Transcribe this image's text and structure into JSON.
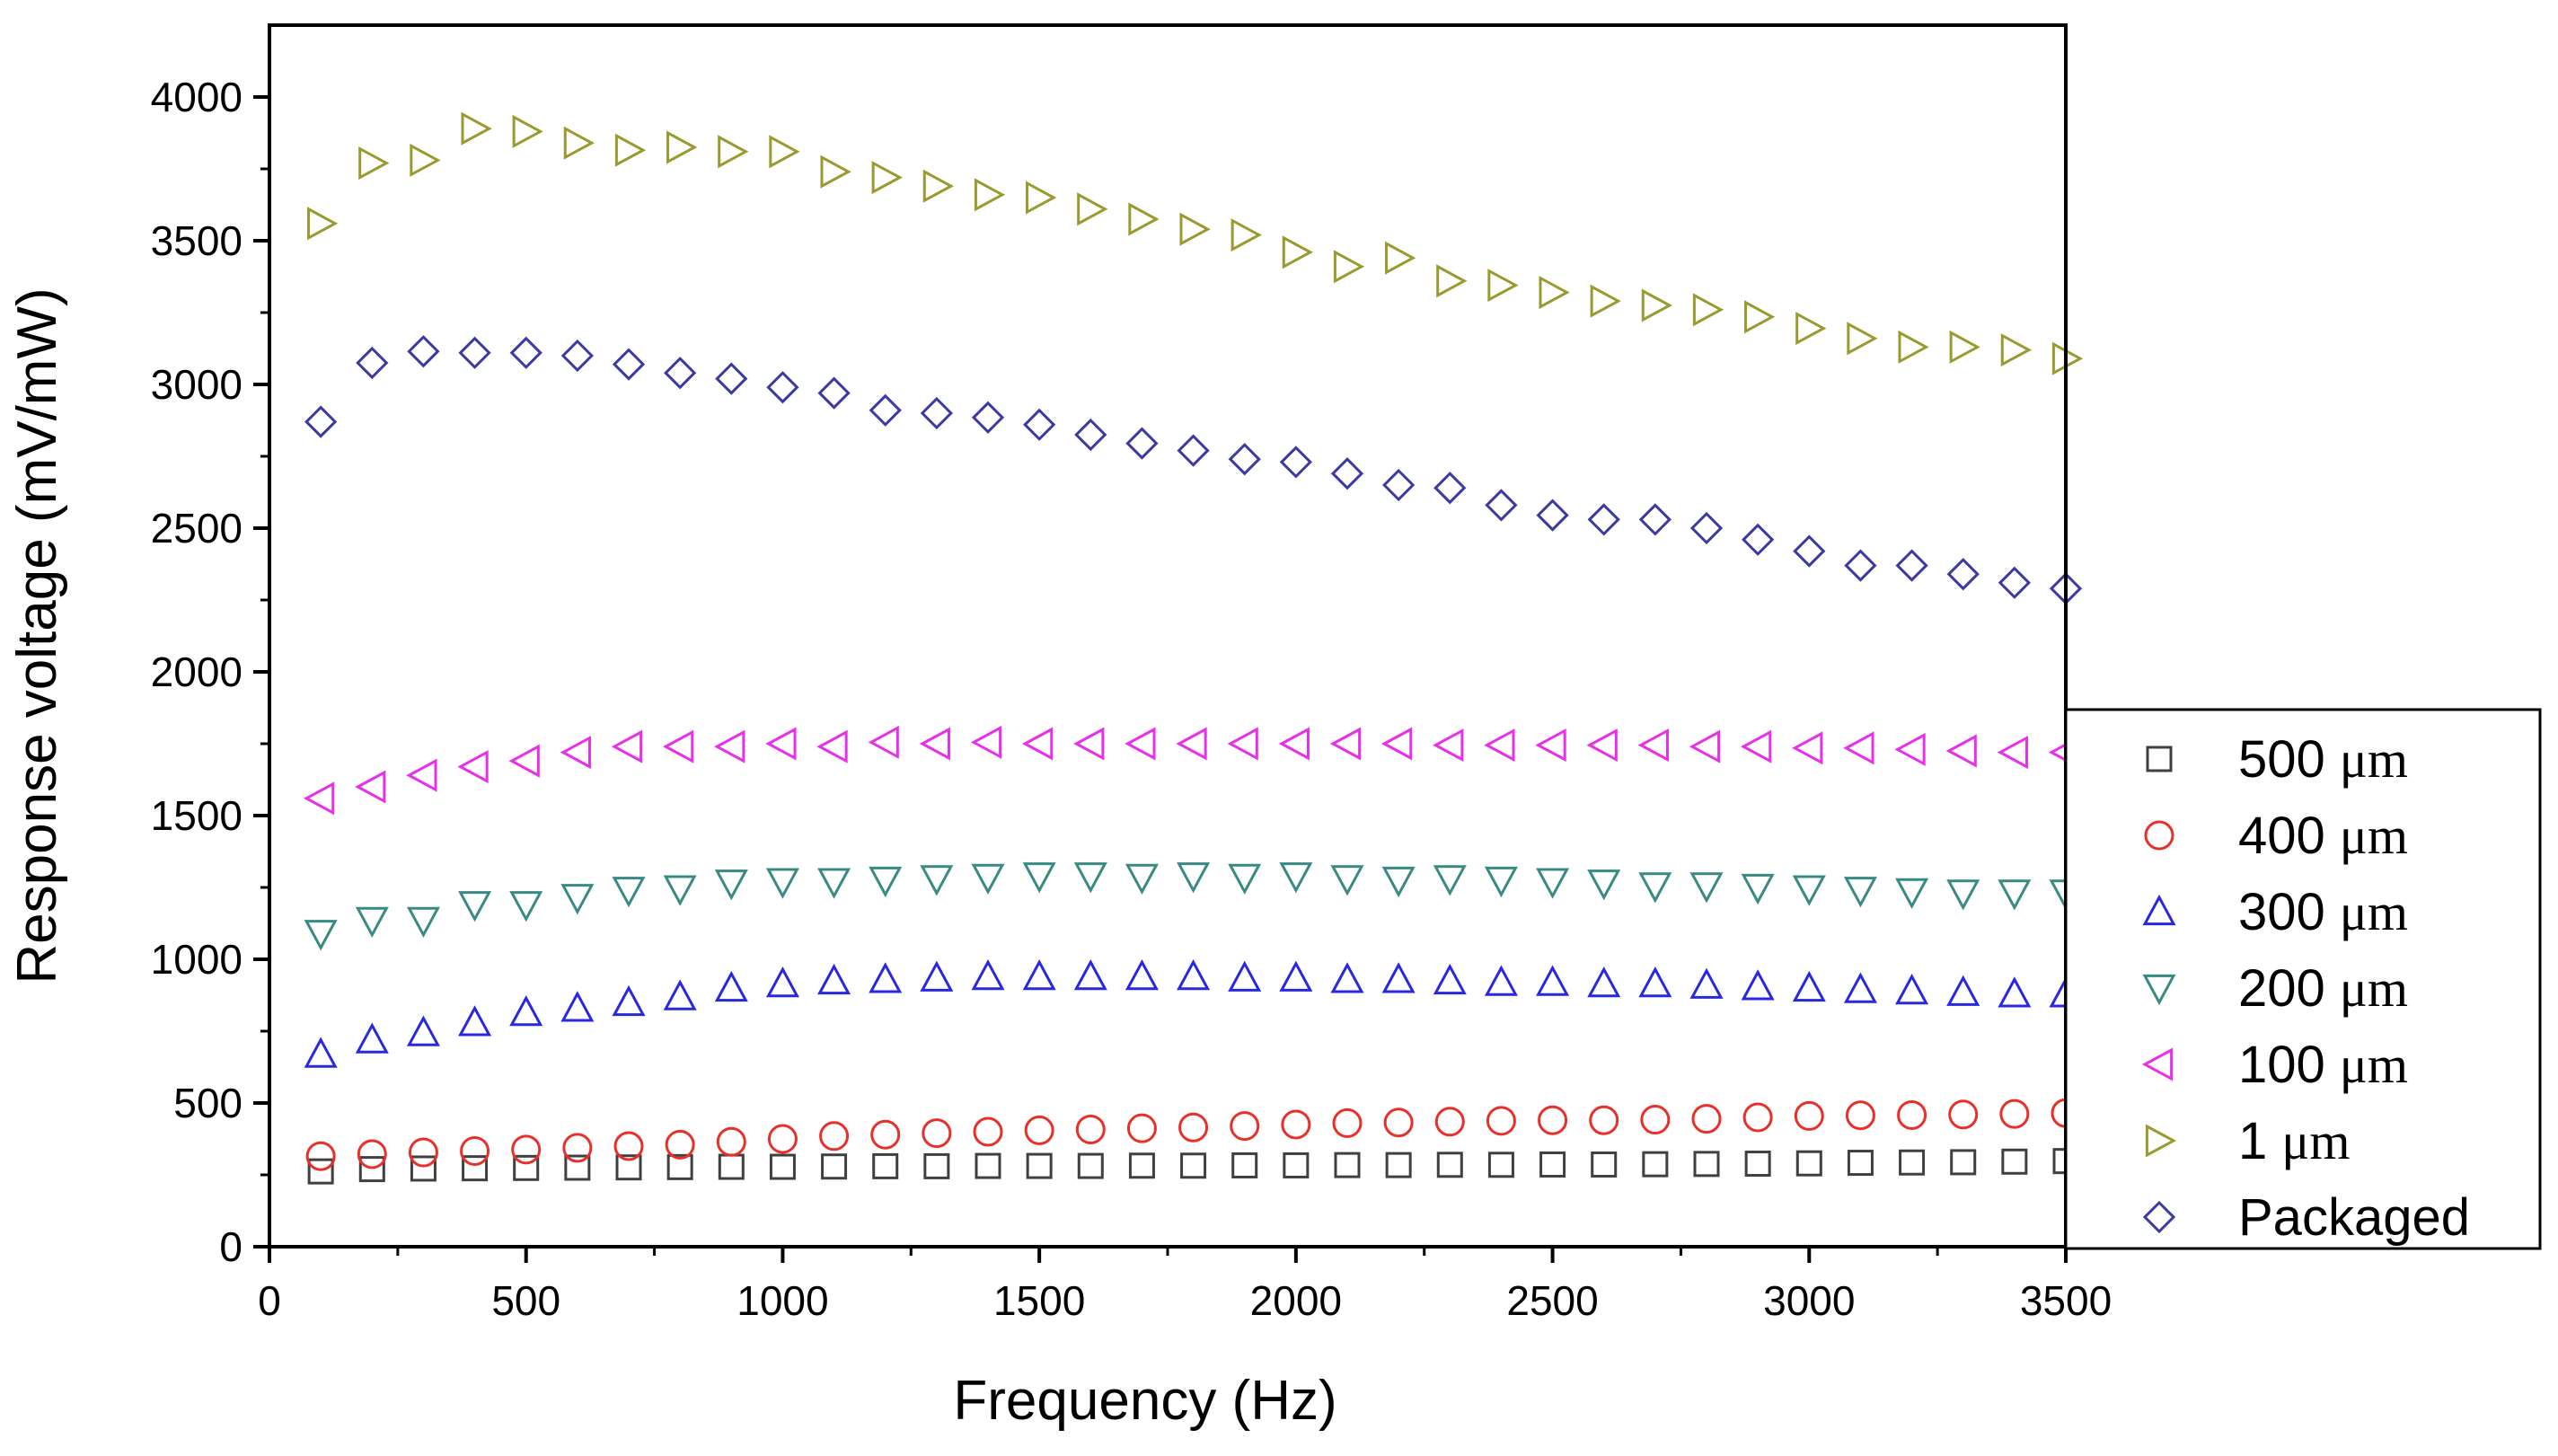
{
  "chart_data": {
    "type": "scatter",
    "title": "",
    "xlabel": "Frequency (Hz)",
    "ylabel": "Response voltage (mV/mW)",
    "xlim": [
      0,
      3500
    ],
    "ylim": [
      0,
      4250
    ],
    "x_ticks": [
      "0",
      "500",
      "1000",
      "1500",
      "2000",
      "2500",
      "3000",
      "3500"
    ],
    "y_ticks": [
      "0",
      "500",
      "1000",
      "1500",
      "2000",
      "2500",
      "3000",
      "3500",
      "4000"
    ],
    "grid": false,
    "legend_position": "right-bottom outside",
    "x": [
      100,
      200,
      300,
      400,
      500,
      600,
      700,
      800,
      900,
      1000,
      1100,
      1200,
      1300,
      1400,
      1500,
      1600,
      1700,
      1800,
      1900,
      2000,
      2100,
      2200,
      2300,
      2400,
      2500,
      2600,
      2700,
      2800,
      2900,
      3000,
      3100,
      3200,
      3300,
      3400,
      3500
    ],
    "series": [
      {
        "name": "500",
        "unit": "μm",
        "marker": "square",
        "color": "#404040",
        "values": [
          262,
          270,
          272,
          273,
          274,
          275,
          276,
          277,
          278,
          278,
          279,
          280,
          280,
          281,
          281,
          281,
          282,
          282,
          283,
          283,
          284,
          284,
          285,
          285,
          286,
          286,
          287,
          288,
          289,
          290,
          292,
          293,
          294,
          296,
          298
        ]
      },
      {
        "name": "400",
        "unit": "μm",
        "marker": "circle",
        "color": "#e8302a",
        "values": [
          315,
          322,
          328,
          333,
          338,
          344,
          350,
          355,
          365,
          375,
          385,
          390,
          395,
          400,
          405,
          408,
          412,
          415,
          420,
          425,
          430,
          432,
          435,
          438,
          440,
          440,
          442,
          445,
          450,
          455,
          457,
          458,
          460,
          462,
          465
        ]
      },
      {
        "name": "300",
        "unit": "μm",
        "marker": "triangle-up",
        "color": "#2828e0",
        "values": [
          670,
          720,
          745,
          780,
          815,
          830,
          850,
          870,
          900,
          915,
          925,
          930,
          935,
          940,
          940,
          940,
          940,
          940,
          935,
          935,
          930,
          930,
          925,
          920,
          920,
          915,
          915,
          910,
          905,
          900,
          895,
          890,
          885,
          880,
          880
        ]
      },
      {
        "name": "200",
        "unit": "μm",
        "marker": "triangle-down",
        "color": "#3a8a84",
        "values": [
          1090,
          1135,
          1135,
          1190,
          1190,
          1215,
          1240,
          1245,
          1265,
          1270,
          1270,
          1275,
          1280,
          1285,
          1290,
          1290,
          1285,
          1290,
          1285,
          1290,
          1280,
          1275,
          1280,
          1275,
          1270,
          1265,
          1255,
          1255,
          1250,
          1245,
          1240,
          1235,
          1230,
          1230,
          1230
        ]
      },
      {
        "name": "100",
        "unit": "μm",
        "marker": "triangle-left",
        "color": "#e830e8",
        "values": [
          1560,
          1600,
          1640,
          1670,
          1690,
          1720,
          1740,
          1740,
          1740,
          1750,
          1740,
          1755,
          1750,
          1755,
          1750,
          1750,
          1750,
          1750,
          1750,
          1750,
          1750,
          1750,
          1745,
          1745,
          1745,
          1745,
          1745,
          1740,
          1740,
          1735,
          1735,
          1730,
          1725,
          1720,
          1720
        ]
      },
      {
        "name": "1",
        "unit": "μm",
        "marker": "triangle-right",
        "color": "#9a9a30",
        "values": [
          3560,
          3770,
          3780,
          3890,
          3880,
          3840,
          3815,
          3825,
          3810,
          3810,
          3740,
          3720,
          3690,
          3660,
          3650,
          3610,
          3575,
          3540,
          3520,
          3460,
          3410,
          3440,
          3360,
          3345,
          3320,
          3290,
          3275,
          3260,
          3235,
          3195,
          3160,
          3130,
          3130,
          3120,
          3090
        ]
      },
      {
        "name": "Packaged",
        "unit": "",
        "marker": "diamond",
        "color": "#3a3aa0",
        "values": [
          2870,
          3075,
          3115,
          3110,
          3110,
          3100,
          3070,
          3040,
          3020,
          2990,
          2970,
          2910,
          2900,
          2885,
          2860,
          2825,
          2795,
          2770,
          2740,
          2730,
          2690,
          2650,
          2640,
          2580,
          2545,
          2530,
          2530,
          2500,
          2460,
          2420,
          2370,
          2370,
          2340,
          2310,
          2290
        ]
      }
    ]
  }
}
